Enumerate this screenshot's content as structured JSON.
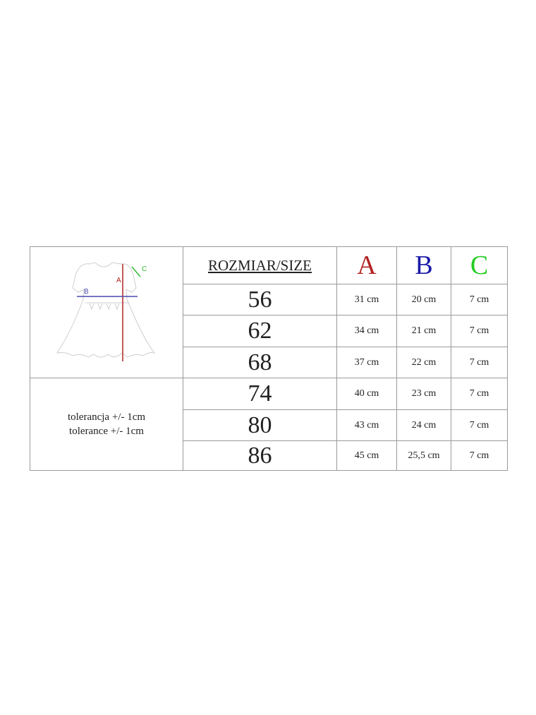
{
  "header": {
    "size_label": "ROZMIAR/SIZE",
    "columns": [
      {
        "label": "A",
        "color": "#b22222"
      },
      {
        "label": "B",
        "color": "#1a1aa8"
      },
      {
        "label": "C",
        "color": "#22cc22"
      }
    ]
  },
  "diagram": {
    "label_a": "A",
    "label_b": "B",
    "label_c": "C"
  },
  "tolerance": [
    "tolerancja +/- 1cm",
    "tolerance +/- 1cm"
  ],
  "rows": [
    {
      "size": "56",
      "a": "31 cm",
      "b": "20 cm",
      "c": "7 cm"
    },
    {
      "size": "62",
      "a": "34 cm",
      "b": "21 cm",
      "c": "7 cm"
    },
    {
      "size": "68",
      "a": "37 cm",
      "b": "22 cm",
      "c": "7 cm"
    },
    {
      "size": "74",
      "a": "40 cm",
      "b": "23 cm",
      "c": "7 cm"
    },
    {
      "size": "80",
      "a": "43 cm",
      "b": "24 cm",
      "c": "7 cm"
    },
    {
      "size": "86",
      "a": "45 cm",
      "b": "25,5 cm",
      "c": "7 cm"
    }
  ]
}
